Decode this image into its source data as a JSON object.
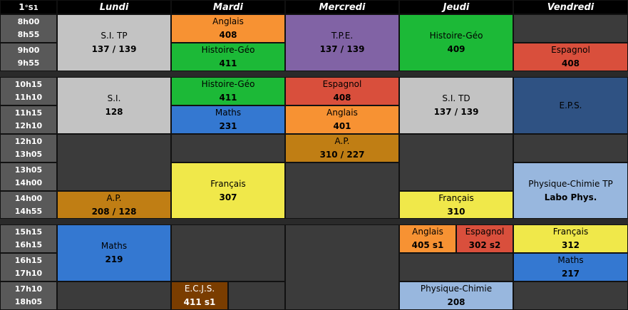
{
  "corner": {
    "class": "1",
    "suffix": "°S1"
  },
  "days": [
    "Lundi",
    "Mardi",
    "Mercredi",
    "Jeudi",
    "Vendredi"
  ],
  "times": [
    [
      "8h00",
      "8h55"
    ],
    [
      "9h00",
      "9h55"
    ],
    [
      "10h15",
      "11h10"
    ],
    [
      "11h15",
      "12h10"
    ],
    [
      "12h10",
      "13h05"
    ],
    [
      "13h05",
      "14h00"
    ],
    [
      "14h00",
      "14h55"
    ],
    [
      "15h15",
      "16h15"
    ],
    [
      "16h15",
      "17h10"
    ],
    [
      "17h10",
      "18h05"
    ]
  ],
  "courses": {
    "lun_sitp": {
      "subject": "S.I. TP",
      "room": "137 / 139"
    },
    "lun_si": {
      "subject": "S.I.",
      "room": "128"
    },
    "lun_ap": {
      "subject": "A.P.",
      "room": "208 / 128"
    },
    "lun_maths": {
      "subject": "Maths",
      "room": "219"
    },
    "mar_anglais": {
      "subject": "Anglais",
      "room": "408"
    },
    "mar_hg1": {
      "subject": "Histoire-Géo",
      "room": "411"
    },
    "mar_hg2": {
      "subject": "Histoire-Géo",
      "room": "411"
    },
    "mar_maths": {
      "subject": "Maths",
      "room": "231"
    },
    "mar_fr": {
      "subject": "Français",
      "room": "307"
    },
    "mar_ecjs": {
      "subject": "E.C.J.S.",
      "room": "411 s1"
    },
    "mer_tpe": {
      "subject": "T.P.E.",
      "room": "137 / 139"
    },
    "mer_esp": {
      "subject": "Espagnol",
      "room": "408"
    },
    "mer_ang": {
      "subject": "Anglais",
      "room": "401"
    },
    "mer_ap": {
      "subject": "A.P.",
      "room": "310 / 227"
    },
    "jeu_hg": {
      "subject": "Histoire-Géo",
      "room": "409"
    },
    "jeu_sitd": {
      "subject": "S.I. TD",
      "room": "137 / 139"
    },
    "jeu_fr": {
      "subject": "Français",
      "room": "310"
    },
    "jeu_ang": {
      "subject": "Anglais",
      "room": "405 s1"
    },
    "jeu_esp": {
      "subject": "Espagnol",
      "room": "302 s2"
    },
    "jeu_pc": {
      "subject": "Physique-Chimie",
      "room": "208"
    },
    "ven_esp": {
      "subject": "Espagnol",
      "room": "408"
    },
    "ven_eps": {
      "subject": "E.P.S.",
      "room": ""
    },
    "ven_pctp": {
      "subject": "Physique-Chimie TP",
      "room": "Labo Phys."
    },
    "ven_fr": {
      "subject": "Français",
      "room": "312"
    },
    "ven_maths": {
      "subject": "Maths",
      "room": "217"
    }
  },
  "colors": {
    "grey": "#c3c3c3",
    "orange": "#f79233",
    "purple": "#8163a5",
    "green": "#1cb937",
    "red": "#d94f3c",
    "navy": "#2f5283",
    "blue": "#3478d1",
    "gold": "#c07e14",
    "yellow": "#f0e84a",
    "light_blue": "#98b7de",
    "brown": "#7a3d00",
    "empty": "#3b3b3b"
  }
}
